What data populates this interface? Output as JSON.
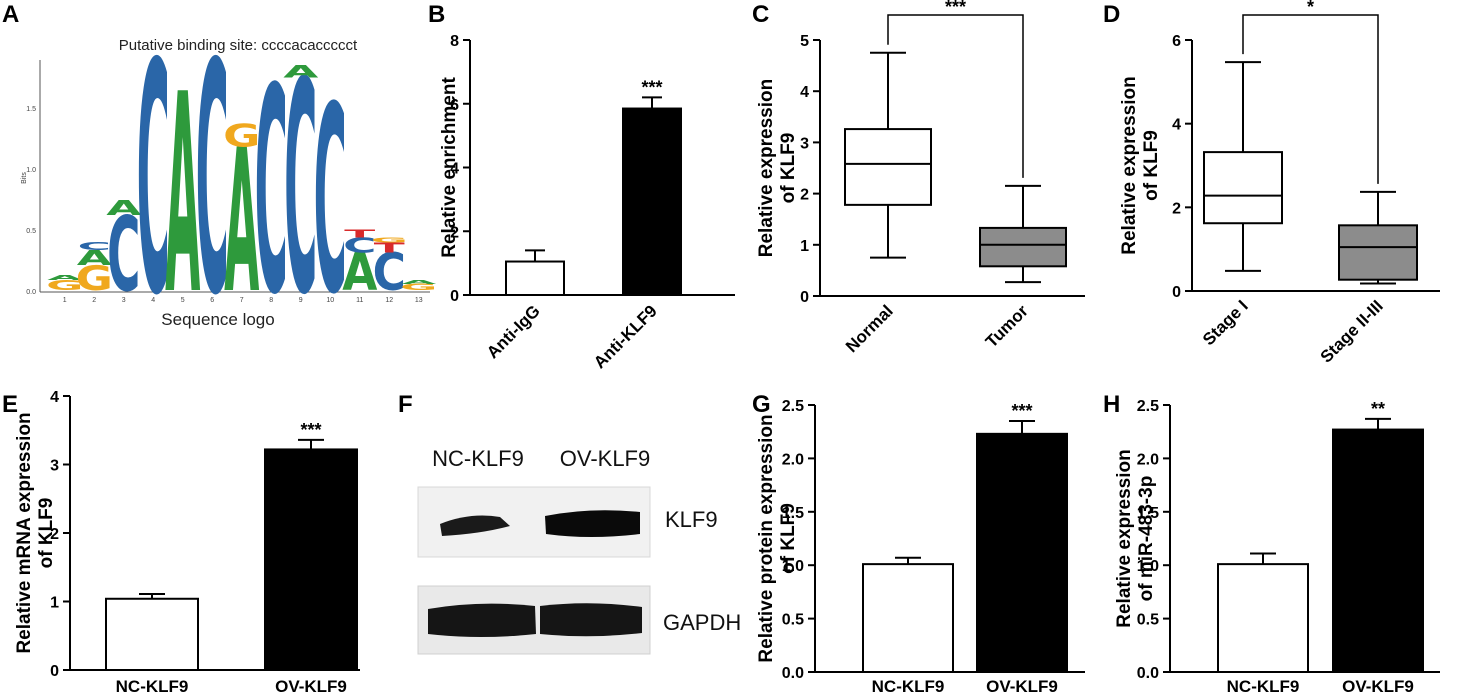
{
  "panels": {
    "A": {
      "label": "A",
      "title": "Putative binding site: ccccacaccccct",
      "xlabel": "Sequence logo",
      "ylabel": "Bits",
      "yticks": [
        "0.0",
        "0.5",
        "1.0",
        "1.5"
      ],
      "positions": [
        "1",
        "2",
        "3",
        "4",
        "5",
        "6",
        "7",
        "8",
        "9",
        "10",
        "11",
        "12",
        "13"
      ],
      "logo_letters": [
        {
          "pos": 1,
          "stack": [
            {
              "letter": "G",
              "bits": 0.08
            },
            {
              "letter": "A",
              "bits": 0.04
            }
          ]
        },
        {
          "pos": 2,
          "stack": [
            {
              "letter": "G",
              "bits": 0.2
            },
            {
              "letter": "A",
              "bits": 0.12
            },
            {
              "letter": "C",
              "bits": 0.06
            }
          ]
        },
        {
          "pos": 3,
          "stack": [
            {
              "letter": "C",
              "bits": 0.6
            },
            {
              "letter": "A",
              "bits": 0.12
            }
          ]
        },
        {
          "pos": 4,
          "stack": [
            {
              "letter": "C",
              "bits": 1.85
            }
          ]
        },
        {
          "pos": 5,
          "stack": [
            {
              "letter": "A",
              "bits": 1.6
            }
          ]
        },
        {
          "pos": 6,
          "stack": [
            {
              "letter": "C",
              "bits": 1.85
            }
          ]
        },
        {
          "pos": 7,
          "stack": [
            {
              "letter": "A",
              "bits": 1.15
            },
            {
              "letter": "G",
              "bits": 0.18
            }
          ]
        },
        {
          "pos": 8,
          "stack": [
            {
              "letter": "C",
              "bits": 1.65
            }
          ]
        },
        {
          "pos": 9,
          "stack": [
            {
              "letter": "C",
              "bits": 1.7
            },
            {
              "letter": "A",
              "bits": 0.1
            }
          ]
        },
        {
          "pos": 10,
          "stack": [
            {
              "letter": "C",
              "bits": 1.5
            }
          ]
        },
        {
          "pos": 11,
          "stack": [
            {
              "letter": "A",
              "bits": 0.3
            },
            {
              "letter": "C",
              "bits": 0.12
            },
            {
              "letter": "T",
              "bits": 0.06
            }
          ]
        },
        {
          "pos": 12,
          "stack": [
            {
              "letter": "C",
              "bits": 0.3
            },
            {
              "letter": "T",
              "bits": 0.08
            },
            {
              "letter": "G",
              "bits": 0.04
            }
          ]
        },
        {
          "pos": 13,
          "stack": [
            {
              "letter": "G",
              "bits": 0.05
            },
            {
              "letter": "A",
              "bits": 0.03
            }
          ]
        }
      ],
      "letter_colors": {
        "A": "#2e9a3c",
        "C": "#2a66a8",
        "G": "#f0a81e",
        "T": "#d82a2a"
      }
    },
    "F": {
      "label": "F",
      "lane_labels": [
        "NC-KLF9",
        "OV-KLF9"
      ],
      "band_labels": [
        "KLF9",
        "GAPDH"
      ]
    }
  },
  "chart_data": [
    {
      "panel": "B",
      "type": "bar",
      "categories": [
        "Anti-IgG",
        "Anti-KLF9"
      ],
      "values": [
        1.05,
        5.85
      ],
      "errors": [
        0.35,
        0.35
      ],
      "fills": [
        "#ffffff",
        "#000000"
      ],
      "ylabel": "Relative enrichment",
      "ylim": [
        0,
        8
      ],
      "yticks": [
        "0",
        "2",
        "4",
        "6",
        "8"
      ],
      "significance": "***"
    },
    {
      "panel": "C",
      "type": "box",
      "categories": [
        "Normal",
        "Tumor"
      ],
      "boxes": [
        {
          "min": 0.75,
          "q1": 1.78,
          "median": 2.58,
          "q3": 3.26,
          "max": 4.75,
          "fill": "#ffffff"
        },
        {
          "min": 0.27,
          "q1": 0.58,
          "median": 1.0,
          "q3": 1.33,
          "max": 2.15,
          "fill": "#8c8c8c"
        }
      ],
      "ylabel": "Relative expression of KLF9",
      "ylim": [
        0,
        5
      ],
      "yticks": [
        "0",
        "1",
        "2",
        "3",
        "4",
        "5"
      ],
      "significance": "***"
    },
    {
      "panel": "D",
      "type": "box",
      "categories": [
        "Stage I",
        "Stage II-III"
      ],
      "boxes": [
        {
          "min": 0.48,
          "q1": 1.62,
          "median": 2.28,
          "q3": 3.32,
          "max": 5.47,
          "fill": "#ffffff"
        },
        {
          "min": 0.18,
          "q1": 0.27,
          "median": 1.05,
          "q3": 1.57,
          "max": 2.37,
          "fill": "#8c8c8c"
        }
      ],
      "ylabel": "Relative expression of KLF9",
      "ylim": [
        0,
        6
      ],
      "yticks": [
        "0",
        "2",
        "4",
        "6"
      ],
      "significance": "*"
    },
    {
      "panel": "E",
      "type": "bar",
      "categories": [
        "NC-KLF9",
        "OV-KLF9"
      ],
      "values": [
        1.04,
        3.22
      ],
      "errors": [
        0.07,
        0.14
      ],
      "fills": [
        "#ffffff",
        "#000000"
      ],
      "ylabel": "Relative mRNA expression of KLF9",
      "ylim": [
        0,
        4
      ],
      "yticks": [
        "0",
        "1",
        "2",
        "3",
        "4"
      ],
      "significance": "***"
    },
    {
      "panel": "G",
      "type": "bar",
      "categories": [
        "NC-KLF9",
        "OV-KLF9"
      ],
      "values": [
        1.01,
        2.23
      ],
      "errors": [
        0.06,
        0.12
      ],
      "fills": [
        "#ffffff",
        "#000000"
      ],
      "ylabel": "Relative protein expression of KLF9",
      "ylim": [
        0,
        2.5
      ],
      "yticks": [
        "0.0",
        "0.5",
        "1.0",
        "1.5",
        "2.0",
        "2.5"
      ],
      "significance": "***"
    },
    {
      "panel": "H",
      "type": "bar",
      "categories": [
        "NC-KLF9",
        "OV-KLF9"
      ],
      "values": [
        1.01,
        2.27
      ],
      "errors": [
        0.1,
        0.1
      ],
      "fills": [
        "#ffffff",
        "#000000"
      ],
      "ylabel": "Relative expression of miR-483-3p",
      "ylim": [
        0,
        2.5
      ],
      "yticks": [
        "0.0",
        "0.5",
        "1.0",
        "1.5",
        "2.0",
        "2.5"
      ],
      "significance": "**"
    }
  ]
}
